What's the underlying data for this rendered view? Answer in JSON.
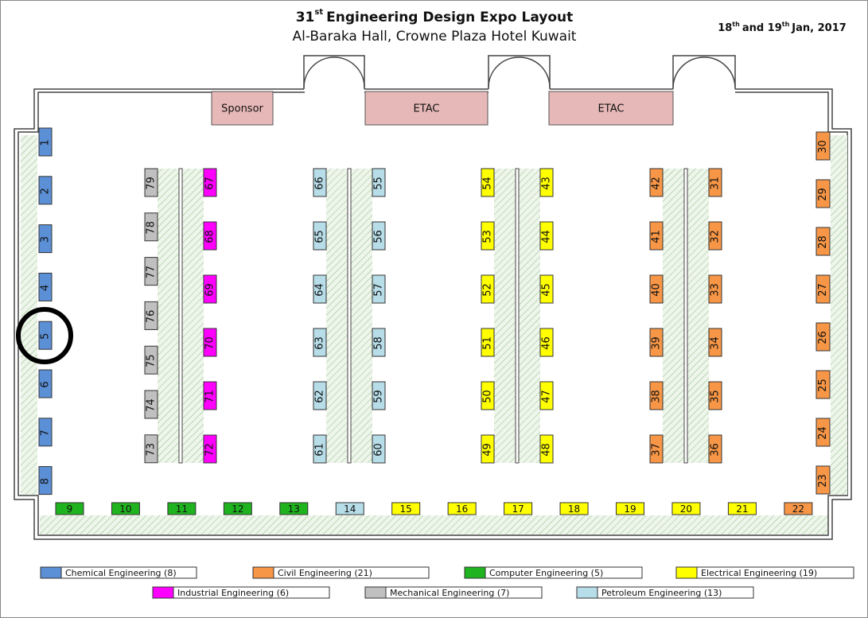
{
  "header": {
    "title_number": "31",
    "title_suffix": "st",
    "title_rest": "Engineering Design Expo Layout",
    "subtitle": "Al-Baraka Hall, Crowne Plaza Hotel Kuwait",
    "date_day1": "18",
    "date_suffix1": "th",
    "date_middle": "and 19",
    "date_suffix2": "th",
    "date_rest": "Jan, 2017"
  },
  "rooms": [
    "Sponsor",
    "ETAC",
    "ETAC"
  ],
  "booth_groups": [
    {
      "labels": [
        1,
        2,
        3,
        4,
        5,
        6,
        7,
        8
      ],
      "colors": [
        "#5b8fd6",
        "#5b8fd6",
        "#5b8fd6",
        "#5b8fd6",
        "#5b8fd6",
        "#5b8fd6",
        "#5b8fd6",
        "#5b8fd6"
      ]
    },
    {
      "labels": [
        9,
        10,
        11,
        12,
        13,
        14,
        15,
        16,
        17,
        18,
        19,
        20,
        21,
        22
      ],
      "colors": [
        "#1fb31f",
        "#1fb31f",
        "#1fb31f",
        "#1fb31f",
        "#1fb31f",
        "#b7dde8",
        "#ffff00",
        "#ffff00",
        "#ffff00",
        "#ffff00",
        "#ffff00",
        "#ffff00",
        "#ffff00",
        "#f79646"
      ]
    },
    {
      "labels": [
        30,
        29,
        28,
        27,
        26,
        25,
        24,
        23
      ],
      "colors": [
        "#f79646",
        "#f79646",
        "#f79646",
        "#f79646",
        "#f79646",
        "#f79646",
        "#f79646",
        "#f79646"
      ]
    },
    {
      "labels": [
        79,
        78,
        77,
        76,
        75,
        74,
        73
      ],
      "colors": [
        "#c0c0c0",
        "#c0c0c0",
        "#c0c0c0",
        "#c0c0c0",
        "#c0c0c0",
        "#c0c0c0",
        "#c0c0c0"
      ]
    },
    {
      "labels": [
        67,
        68,
        69,
        70,
        71,
        72
      ],
      "colors": [
        "#ff00ff",
        "#ff00ff",
        "#ff00ff",
        "#ff00ff",
        "#ff00ff",
        "#ff00ff"
      ]
    },
    {
      "labels": [
        66,
        65,
        64,
        63,
        62,
        61
      ],
      "colors": [
        "#b7dde8",
        "#b7dde8",
        "#b7dde8",
        "#b7dde8",
        "#b7dde8",
        "#b7dde8"
      ]
    },
    {
      "labels": [
        55,
        56,
        57,
        58,
        59,
        60
      ],
      "colors": [
        "#b7dde8",
        "#b7dde8",
        "#b7dde8",
        "#b7dde8",
        "#b7dde8",
        "#b7dde8"
      ]
    },
    {
      "labels": [
        54,
        53,
        52,
        51,
        50,
        49
      ],
      "colors": [
        "#ffff00",
        "#ffff00",
        "#ffff00",
        "#ffff00",
        "#ffff00",
        "#ffff00"
      ]
    },
    {
      "labels": [
        43,
        44,
        45,
        46,
        47,
        48
      ],
      "colors": [
        "#ffff00",
        "#ffff00",
        "#ffff00",
        "#ffff00",
        "#ffff00",
        "#ffff00"
      ]
    },
    {
      "labels": [
        42,
        41,
        40,
        39,
        38,
        37
      ],
      "colors": [
        "#f79646",
        "#f79646",
        "#f79646",
        "#f79646",
        "#f79646",
        "#f79646"
      ]
    },
    {
      "labels": [
        31,
        32,
        33,
        34,
        35,
        36
      ],
      "colors": [
        "#f79646",
        "#f79646",
        "#f79646",
        "#f79646",
        "#f79646",
        "#f79646"
      ]
    }
  ],
  "legend": [
    {
      "label": "Chemical Engineering (8)",
      "color": "#5b8fd6"
    },
    {
      "label": "Civil Engineering (21)",
      "color": "#f79646"
    },
    {
      "label": "Computer Engineering (5)",
      "color": "#1fb31f"
    },
    {
      "label": "Electrical Engineering (19)",
      "color": "#ffff00"
    },
    {
      "label": "Industrial Engineering (6)",
      "color": "#ff00ff"
    },
    {
      "label": "Mechanical Engineering (7)",
      "color": "#c0c0c0"
    },
    {
      "label": "Petroleum Engineering (13)",
      "color": "#b7dde8"
    }
  ]
}
